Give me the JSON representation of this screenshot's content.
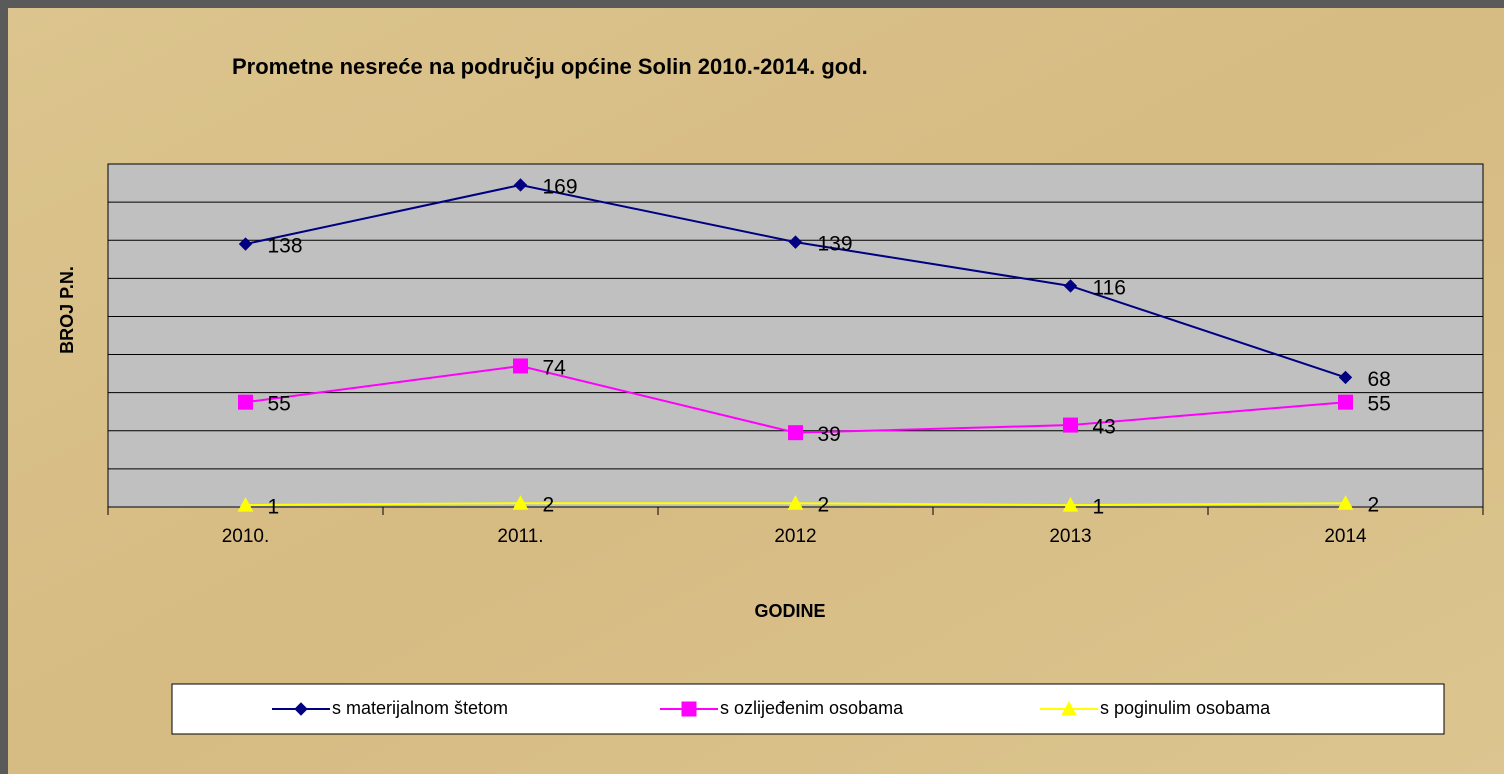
{
  "chart_data": {
    "type": "line",
    "title": "Prometne nesreće na području općine Solin 2010.-2014. god.",
    "y_label": "BROJ P.N.",
    "x_label": "GODINE",
    "categories": [
      "2010.",
      "2011.",
      "2012",
      "2013",
      "2014"
    ],
    "series": [
      {
        "name": "s materijalnom štetom",
        "color": "#000080",
        "marker": "diamond",
        "values": [
          138,
          169,
          139,
          116,
          68
        ]
      },
      {
        "name": "s ozlijeđenim osobama",
        "color": "#ff00ff",
        "marker": "square",
        "values": [
          55,
          74,
          39,
          43,
          55
        ]
      },
      {
        "name": "s poginulim osobama",
        "color": "#ffff00",
        "marker": "triangle",
        "values": [
          1,
          2,
          2,
          1,
          2
        ]
      }
    ],
    "ylim": [
      0,
      180
    ],
    "yticks": [
      0,
      20,
      40,
      60,
      80,
      100,
      120,
      140,
      160,
      180
    ],
    "grid": true,
    "legend": "bottom"
  }
}
